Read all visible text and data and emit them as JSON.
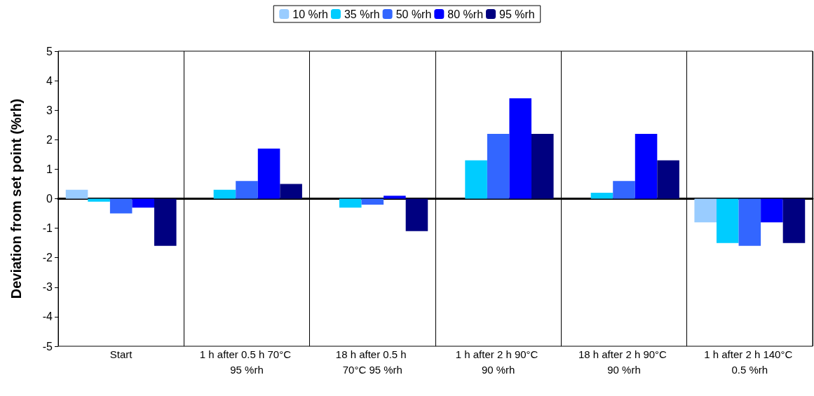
{
  "chart_data": {
    "type": "bar",
    "ylabel": "Deviation from set point (%rh)",
    "categories": [
      "Start",
      "1 h after 0.5 h 70°C 95 %rh",
      "18 h after 0.5 h 70°C 95 %rh",
      "1 h after 2 h 90°C 90 %rh",
      "18 h after 2 h 90°C 90 %rh",
      "1 h after 2 h 140°C 0.5 %rh"
    ],
    "series": [
      {
        "name": "10 %rh",
        "color": "#99ccff",
        "values": [
          0.3,
          0,
          0,
          0,
          0,
          -0.8
        ]
      },
      {
        "name": "35 %rh",
        "color": "#00ccff",
        "values": [
          -0.1,
          0.3,
          -0.3,
          1.3,
          0.2,
          -1.5
        ]
      },
      {
        "name": "50 %rh",
        "color": "#3366ff",
        "values": [
          -0.5,
          0.6,
          -0.2,
          2.2,
          0.6,
          -1.6
        ]
      },
      {
        "name": "80 %rh",
        "color": "#0000ff",
        "values": [
          -0.3,
          1.7,
          0.1,
          3.4,
          2.2,
          -0.8
        ]
      },
      {
        "name": "95 %rh",
        "color": "#000080",
        "values": [
          -1.6,
          0.5,
          -1.1,
          2.2,
          1.3,
          -1.5
        ]
      }
    ],
    "ylim": [
      -5,
      5
    ],
    "yticks": [
      -5,
      -4,
      -3,
      -2,
      -1,
      0,
      1,
      2,
      3,
      4,
      5
    ],
    "grid": "x",
    "legend": "top"
  }
}
